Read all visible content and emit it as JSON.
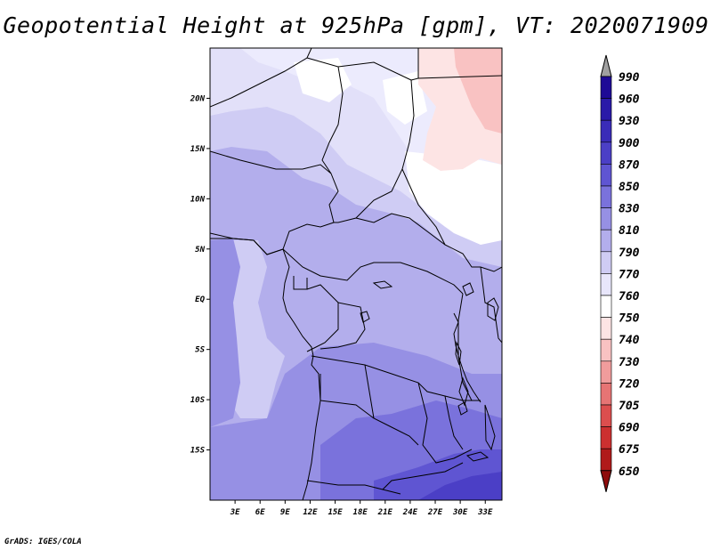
{
  "title": "Geopotential Height at 925hPa [gpm], VT: 2020071909",
  "footer": "GrADS: IGES/COLA",
  "map": {
    "variable": "Geopotential Height",
    "level": "925hPa",
    "units": "gpm",
    "valid_time": "2020071909",
    "lon_range": [
      0,
      35
    ],
    "lat_range": [
      -20,
      25
    ],
    "x_tick_labels": [
      "3E",
      "6E",
      "9E",
      "12E",
      "15E",
      "18E",
      "21E",
      "24E",
      "27E",
      "30E",
      "33E"
    ],
    "y_tick_labels": [
      "20N",
      "15N",
      "10N",
      "5N",
      "EQ",
      "5S",
      "10S",
      "15S"
    ]
  },
  "colorbar": {
    "labels": [
      "990",
      "960",
      "930",
      "900",
      "870",
      "850",
      "830",
      "810",
      "790",
      "770",
      "760",
      "750",
      "740",
      "730",
      "720",
      "705",
      "690",
      "675",
      "650"
    ],
    "colors": [
      "#a0a0a0",
      "#1e0a96",
      "#2a1aa8",
      "#3a2cb8",
      "#4b3fc6",
      "#5f55d2",
      "#7a72dc",
      "#9690e4",
      "#b3aeec",
      "#cfccf4",
      "#e8e6fb",
      "#ffffff",
      "#fde4e4",
      "#f9c2c2",
      "#f09c9c",
      "#e67474",
      "#dc4e4e",
      "#cc3030",
      "#b01a1a",
      "#8e0c0c"
    ]
  }
}
